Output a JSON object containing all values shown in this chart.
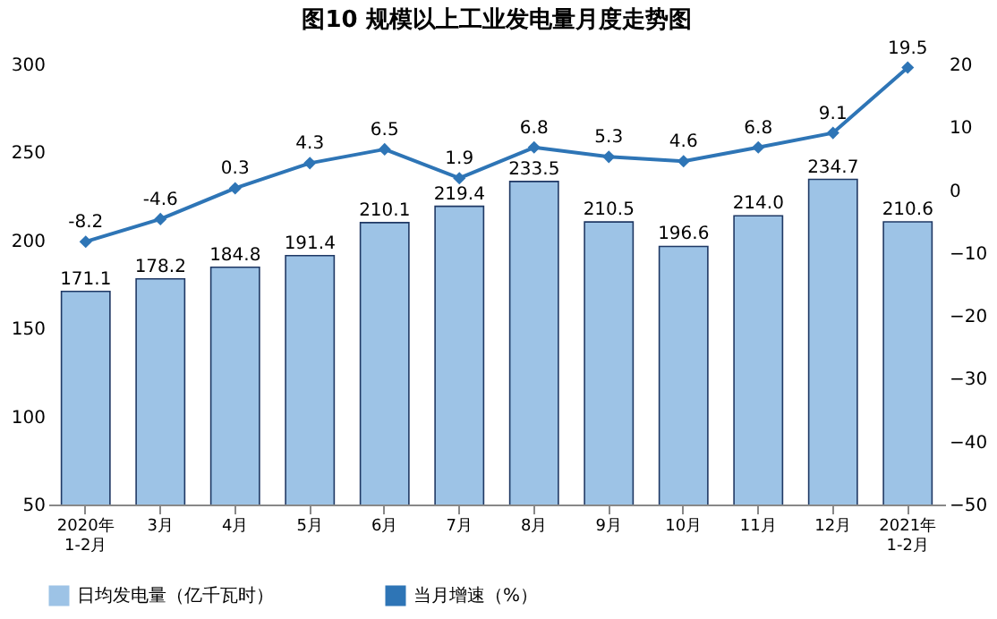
{
  "chart_data": {
    "type": "bar",
    "title": "图10  规模以上工业发电量月度走势图",
    "categories": [
      "2020年\n1-2月",
      "3月",
      "4月",
      "5月",
      "6月",
      "7月",
      "8月",
      "9月",
      "10月",
      "11月",
      "12月",
      "2021年\n1-2月"
    ],
    "series": [
      {
        "name": "日均发电量（亿千瓦时）",
        "color": "#9dc3e6",
        "values": [
          171.1,
          178.2,
          184.8,
          191.4,
          210.1,
          219.4,
          233.5,
          210.5,
          196.6,
          214.0,
          234.7,
          210.6
        ],
        "value_labels": [
          "171.1",
          "178.2",
          "184.8",
          "191.4",
          "210.1",
          "219.4",
          "233.5",
          "210.5",
          "196.6",
          "214.0",
          "234.7",
          "210.6"
        ]
      },
      {
        "name": "当月增速（%）",
        "type": "line",
        "axis": "y2",
        "color": "#2e75b6",
        "values": [
          -8.2,
          -4.6,
          0.3,
          4.3,
          6.5,
          1.9,
          6.8,
          5.3,
          4.6,
          6.8,
          9.1,
          19.5
        ],
        "value_labels": [
          "-8.2",
          "-4.6",
          "0.3",
          "4.3",
          "6.5",
          "1.9",
          "6.8",
          "5.3",
          "4.6",
          "6.8",
          "9.1",
          "19.5"
        ]
      }
    ],
    "ylim": [
      50,
      300
    ],
    "yticks": [
      50,
      100,
      150,
      200,
      250,
      300
    ],
    "y2lim": [
      -50,
      20
    ],
    "y2ticks": [
      -50,
      -40,
      -30,
      -20,
      -10,
      0,
      10,
      20
    ],
    "marker": "diamond",
    "legend": "bottom",
    "grid": false
  }
}
